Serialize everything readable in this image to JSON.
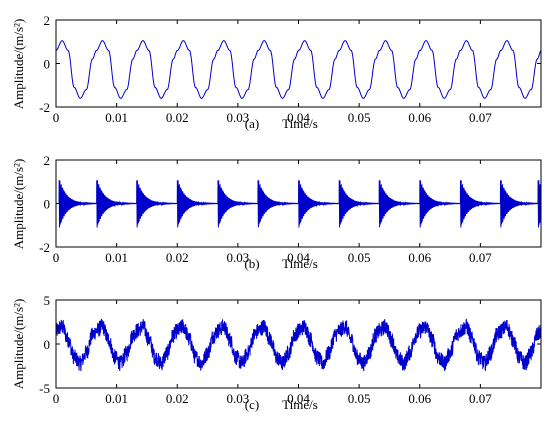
{
  "chart_data": [
    {
      "type": "line",
      "caption": "(a)",
      "xlabel": "Time/s",
      "ylabel": "Amplitude/(m/s²)",
      "xlim": [
        0,
        0.08
      ],
      "ylim": [
        -2,
        2
      ],
      "xticks": [
        "0",
        "0.01",
        "0.02",
        "0.03",
        "0.04",
        "0.05",
        "0.06",
        "0.07"
      ],
      "yticks": [
        "-2",
        "0",
        "2"
      ],
      "color": "#0000cc",
      "series": [
        {
          "period": 0.00667,
          "x": [
            0,
            0.001,
            0.002,
            0.003,
            0.004,
            0.005,
            0.006,
            0.00667
          ],
          "values": [
            0.6,
            1.05,
            0.6,
            -1.1,
            -1.6,
            -1.2,
            0.2,
            0.6
          ]
        }
      ]
    },
    {
      "type": "line",
      "caption": "(b)",
      "xlabel": "Time/s",
      "ylabel": "Amplitude/(m/s²)",
      "xlim": [
        0,
        0.08
      ],
      "ylim": [
        -2,
        2
      ],
      "xticks": [
        "0",
        "0.01",
        "0.02",
        "0.03",
        "0.04",
        "0.05",
        "0.06",
        "0.07"
      ],
      "yticks": [
        "-2",
        "0",
        "2"
      ],
      "color": "#0000cc",
      "series": [
        {
          "impulse_times": [
            0.0005,
            0.0067,
            0.0133,
            0.02,
            0.0267,
            0.0333,
            0.04,
            0.0467,
            0.0533,
            0.06,
            0.0667,
            0.0733,
            0.0795
          ],
          "peak_amplitude": 1.2,
          "decay_time": 0.0012
        }
      ]
    },
    {
      "type": "line",
      "caption": "(c)",
      "xlabel": "Time/s",
      "ylabel": "Amplitude/(m/s²)",
      "xlim": [
        0,
        0.08
      ],
      "ylim": [
        -5,
        5
      ],
      "xticks": [
        "0",
        "0.01",
        "0.02",
        "0.03",
        "0.04",
        "0.05",
        "0.06",
        "0.07"
      ],
      "yticks": [
        "-5",
        "0",
        "5"
      ],
      "color": "#0000cc",
      "series": [
        {
          "period": 0.00667,
          "x": [
            0,
            0.001,
            0.002,
            0.003,
            0.004,
            0.005,
            0.006,
            0.00667
          ],
          "values": [
            1.5,
            2.0,
            0.5,
            -1.5,
            -2.2,
            -1.0,
            1.0,
            1.5
          ],
          "noise_amplitude": 0.9
        }
      ]
    }
  ]
}
